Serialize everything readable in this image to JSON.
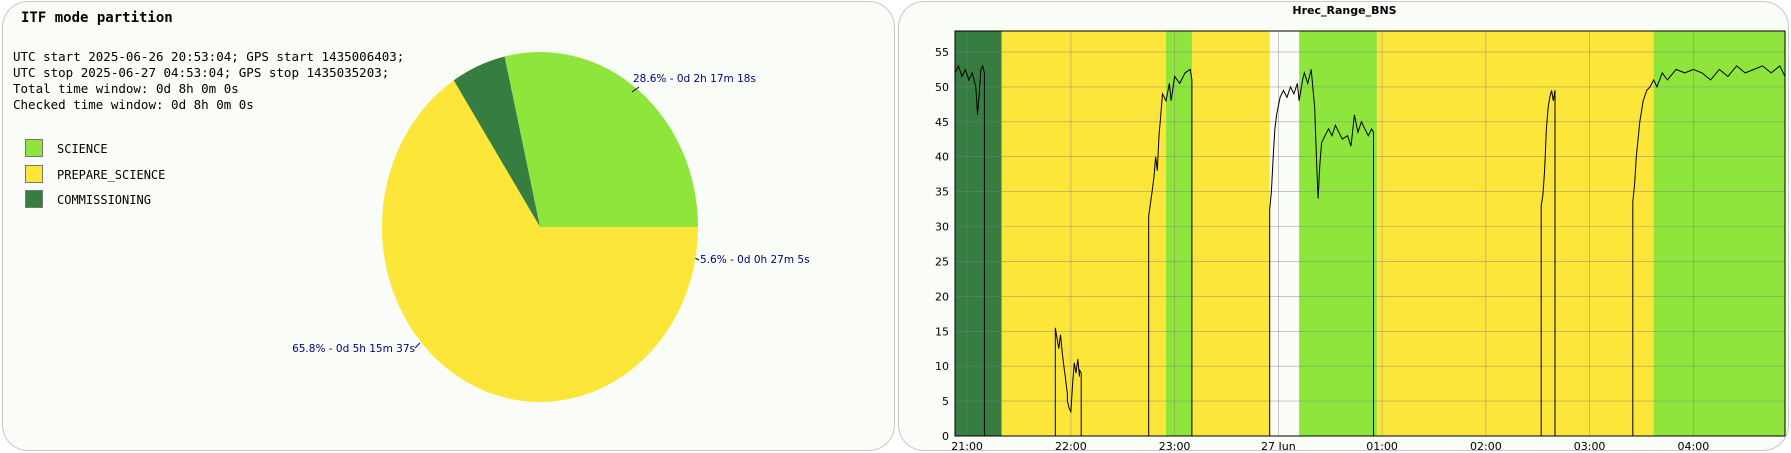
{
  "left": {
    "title": "ITF mode partition",
    "info_lines": [
      "UTC start 2025-06-26 20:53:04; GPS start 1435006403;",
      "UTC stop 2025-06-27 04:53:04; GPS stop 1435035203;",
      "Total time window: 0d 8h 0m 0s",
      "Checked time window: 0d 8h 0m 0s"
    ]
  },
  "right": {
    "title": "Hrec_Range_BNS"
  },
  "chart_data": [
    {
      "type": "pie",
      "title": "ITF mode partition",
      "legend": [
        {
          "name": "SCIENCE",
          "color": "#8ee63c"
        },
        {
          "name": "PREPARE_SCIENCE",
          "color": "#fde63a"
        },
        {
          "name": "COMMISSIONING",
          "color": "#357d40"
        }
      ],
      "slices": [
        {
          "name": "SCIENCE",
          "percent": 28.6,
          "label": "28.6% - 0d 2h 17m 18s",
          "color": "#8ee63c"
        },
        {
          "name": "COMMISSIONING",
          "percent": 5.6,
          "label": "5.6% - 0d 0h 27m 5s",
          "color": "#357d40"
        },
        {
          "name": "PREPARE_SCIENCE",
          "percent": 65.8,
          "label": "65.8% - 0d 5h 15m 37s",
          "color": "#fde63a"
        }
      ]
    },
    {
      "type": "line",
      "title": "Hrec_Range_BNS",
      "xlim": [
        "20:53",
        "04:53"
      ],
      "ylim": [
        0,
        58
      ],
      "yticks": [
        0,
        5,
        10,
        15,
        20,
        25,
        30,
        35,
        40,
        45,
        50,
        55
      ],
      "xticks": [
        {
          "t": "21:00",
          "label": "21:00"
        },
        {
          "t": "22:00",
          "label": "22:00"
        },
        {
          "t": "23:00",
          "label": "23:00"
        },
        {
          "t": "00:00",
          "label": "27 Jun"
        },
        {
          "t": "01:00",
          "label": "01:00"
        },
        {
          "t": "02:00",
          "label": "02:00"
        },
        {
          "t": "03:00",
          "label": "03:00"
        },
        {
          "t": "04:00",
          "label": "04:00"
        }
      ],
      "grid": true,
      "mode_bands": [
        {
          "mode": "COMMISSIONING",
          "start": "20:53",
          "end": "21:20",
          "color": "#357d40"
        },
        {
          "mode": "PREPARE_SCIENCE",
          "start": "21:20",
          "end": "23:55",
          "color": "#fde63a"
        },
        {
          "mode": "SCIENCE",
          "start": "22:55",
          "end": "23:10",
          "color": "#8ee63c"
        },
        {
          "mode": "SCIENCE",
          "start": "00:12",
          "end": "00:57",
          "color": "#8ee63c"
        },
        {
          "mode": "PREPARE_SCIENCE",
          "start": "00:57",
          "end": "03:37",
          "color": "#fde63a"
        },
        {
          "mode": "SCIENCE",
          "start": "03:37",
          "end": "04:53",
          "color": "#8ee63c"
        }
      ],
      "segments": [
        {
          "points": [
            [
              "20:53",
              52
            ],
            [
              "20:55",
              53
            ],
            [
              "20:57",
              51.5
            ],
            [
              "20:59",
              52.5
            ],
            [
              "21:01",
              51
            ],
            [
              "21:03",
              52
            ],
            [
              "21:05",
              50
            ],
            [
              "21:06",
              46
            ],
            [
              "21:07",
              49
            ],
            [
              "21:08",
              52.5
            ],
            [
              "21:09",
              53
            ],
            [
              "21:10",
              52
            ]
          ]
        },
        {
          "points": [
            [
              "21:51",
              15.5
            ],
            [
              "21:52",
              14
            ],
            [
              "21:53",
              12.5
            ],
            [
              "21:54",
              14.5
            ],
            [
              "21:55",
              12
            ],
            [
              "21:56",
              10
            ],
            [
              "21:57",
              8
            ],
            [
              "21:58",
              6
            ],
            [
              "21:58",
              5
            ],
            [
              "21:59",
              4
            ],
            [
              "22:00",
              3.5
            ],
            [
              "22:01",
              7.5
            ],
            [
              "22:02",
              10.5
            ],
            [
              "22:03",
              9
            ],
            [
              "22:04",
              11
            ],
            [
              "22:05",
              8.5
            ],
            [
              "22:05",
              9.5
            ],
            [
              "22:06",
              9
            ]
          ]
        },
        {
          "points": [
            [
              "22:45",
              31.5
            ],
            [
              "22:47",
              35
            ],
            [
              "22:48",
              37
            ],
            [
              "22:49",
              40
            ],
            [
              "22:50",
              38
            ],
            [
              "22:51",
              43
            ],
            [
              "22:52",
              46
            ],
            [
              "22:53",
              49
            ],
            [
              "22:55",
              48
            ],
            [
              "22:57",
              50.5
            ],
            [
              "22:58",
              48
            ],
            [
              "23:00",
              51.5
            ],
            [
              "23:03",
              50.5
            ],
            [
              "23:06",
              52
            ],
            [
              "23:09",
              52.5
            ],
            [
              "23:10",
              51
            ]
          ]
        },
        {
          "points": [
            [
              "23:55",
              32.5
            ],
            [
              "23:56",
              35
            ],
            [
              "23:57",
              40
            ],
            [
              "23:58",
              44
            ],
            [
              "23:59",
              46
            ],
            [
              "00:01",
              48.5
            ],
            [
              "00:03",
              49.5
            ],
            [
              "00:05",
              48.5
            ],
            [
              "00:07",
              50
            ],
            [
              "00:09",
              49
            ],
            [
              "00:11",
              50.5
            ],
            [
              "00:12",
              48
            ],
            [
              "00:14",
              51
            ],
            [
              "00:15",
              52
            ],
            [
              "00:17",
              50.5
            ],
            [
              "00:19",
              52.5
            ],
            [
              "00:21",
              47
            ],
            [
              "00:22",
              40
            ],
            [
              "00:23",
              34
            ],
            [
              "00:24",
              39
            ],
            [
              "00:25",
              42
            ],
            [
              "00:27",
              43
            ],
            [
              "00:29",
              44
            ],
            [
              "00:31",
              43
            ],
            [
              "00:33",
              44.5
            ],
            [
              "00:35",
              43.5
            ],
            [
              "00:37",
              42.5
            ],
            [
              "00:40",
              43
            ],
            [
              "00:42",
              41.5
            ],
            [
              "00:44",
              46
            ],
            [
              "00:46",
              43.5
            ],
            [
              "00:48",
              45
            ],
            [
              "00:50",
              44
            ],
            [
              "00:52",
              43
            ],
            [
              "00:54",
              44
            ],
            [
              "00:55",
              43.5
            ]
          ]
        },
        {
          "points": [
            [
              "02:32",
              33
            ],
            [
              "02:33",
              34.5
            ],
            [
              "02:34",
              38
            ],
            [
              "02:35",
              44
            ],
            [
              "02:36",
              47
            ],
            [
              "02:37",
              48.5
            ],
            [
              "02:38",
              49.5
            ],
            [
              "02:39",
              48
            ],
            [
              "02:40",
              49.5
            ]
          ]
        },
        {
          "points": [
            [
              "03:25",
              33.5
            ],
            [
              "03:26",
              36
            ],
            [
              "03:27",
              40
            ],
            [
              "03:29",
              45
            ],
            [
              "03:31",
              48
            ],
            [
              "03:33",
              49.5
            ],
            [
              "03:35",
              50
            ],
            [
              "03:37",
              51
            ],
            [
              "03:39",
              50
            ],
            [
              "03:42",
              52
            ],
            [
              "03:45",
              51
            ],
            [
              "03:50",
              52.5
            ],
            [
              "03:55",
              52
            ],
            [
              "04:00",
              52.5
            ],
            [
              "04:05",
              52
            ],
            [
              "04:10",
              51
            ],
            [
              "04:15",
              52.5
            ],
            [
              "04:20",
              51.5
            ],
            [
              "04:25",
              53
            ],
            [
              "04:30",
              52
            ],
            [
              "04:35",
              52.5
            ],
            [
              "04:40",
              53
            ],
            [
              "04:45",
              52
            ],
            [
              "04:50",
              53
            ],
            [
              "04:53",
              51.5
            ]
          ]
        }
      ]
    }
  ]
}
